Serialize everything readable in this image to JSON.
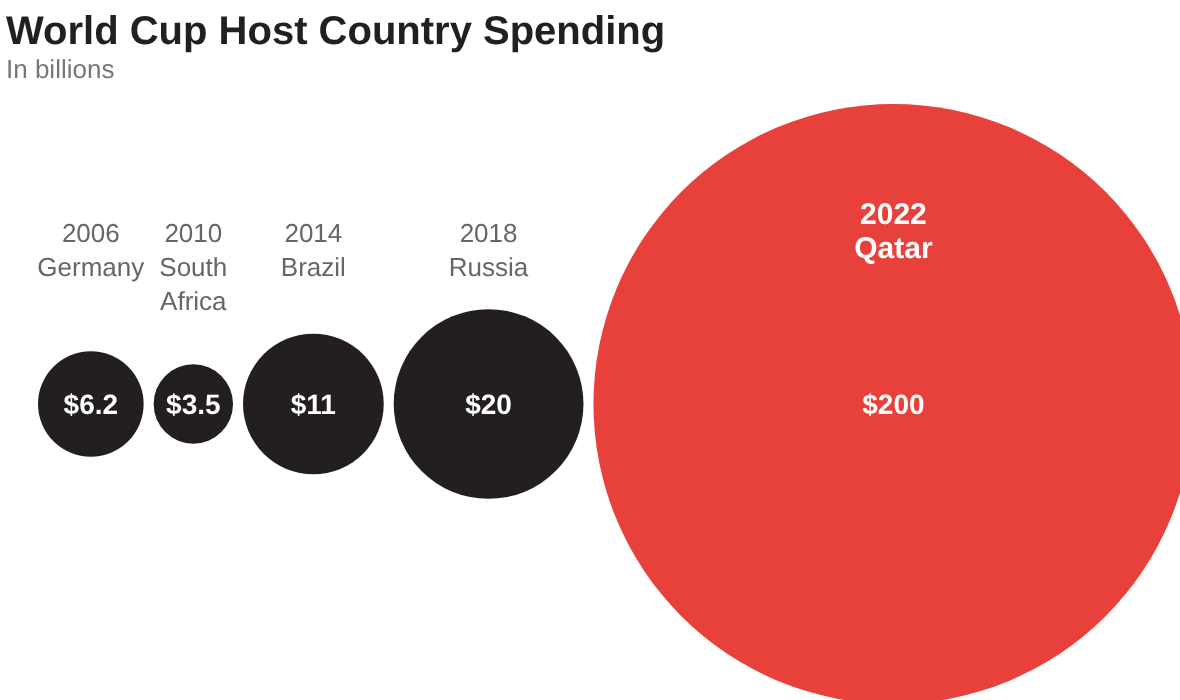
{
  "chart_data": {
    "type": "other",
    "title": "World Cup Host Country Spending",
    "subtitle": "In billions",
    "categories": [
      "2006\nGermany",
      "2010\nSouth\nAfrica",
      "2014\nBrazil",
      "2018\nRussia",
      "2022\nQatar"
    ],
    "values": [
      6.2,
      3.5,
      11,
      20,
      200
    ],
    "value_labels": [
      "$6.2",
      "$3.5",
      "$11",
      "$20",
      "$200"
    ],
    "colors": [
      "#231f20",
      "#231f20",
      "#231f20",
      "#231f20",
      "#e8403a"
    ]
  }
}
